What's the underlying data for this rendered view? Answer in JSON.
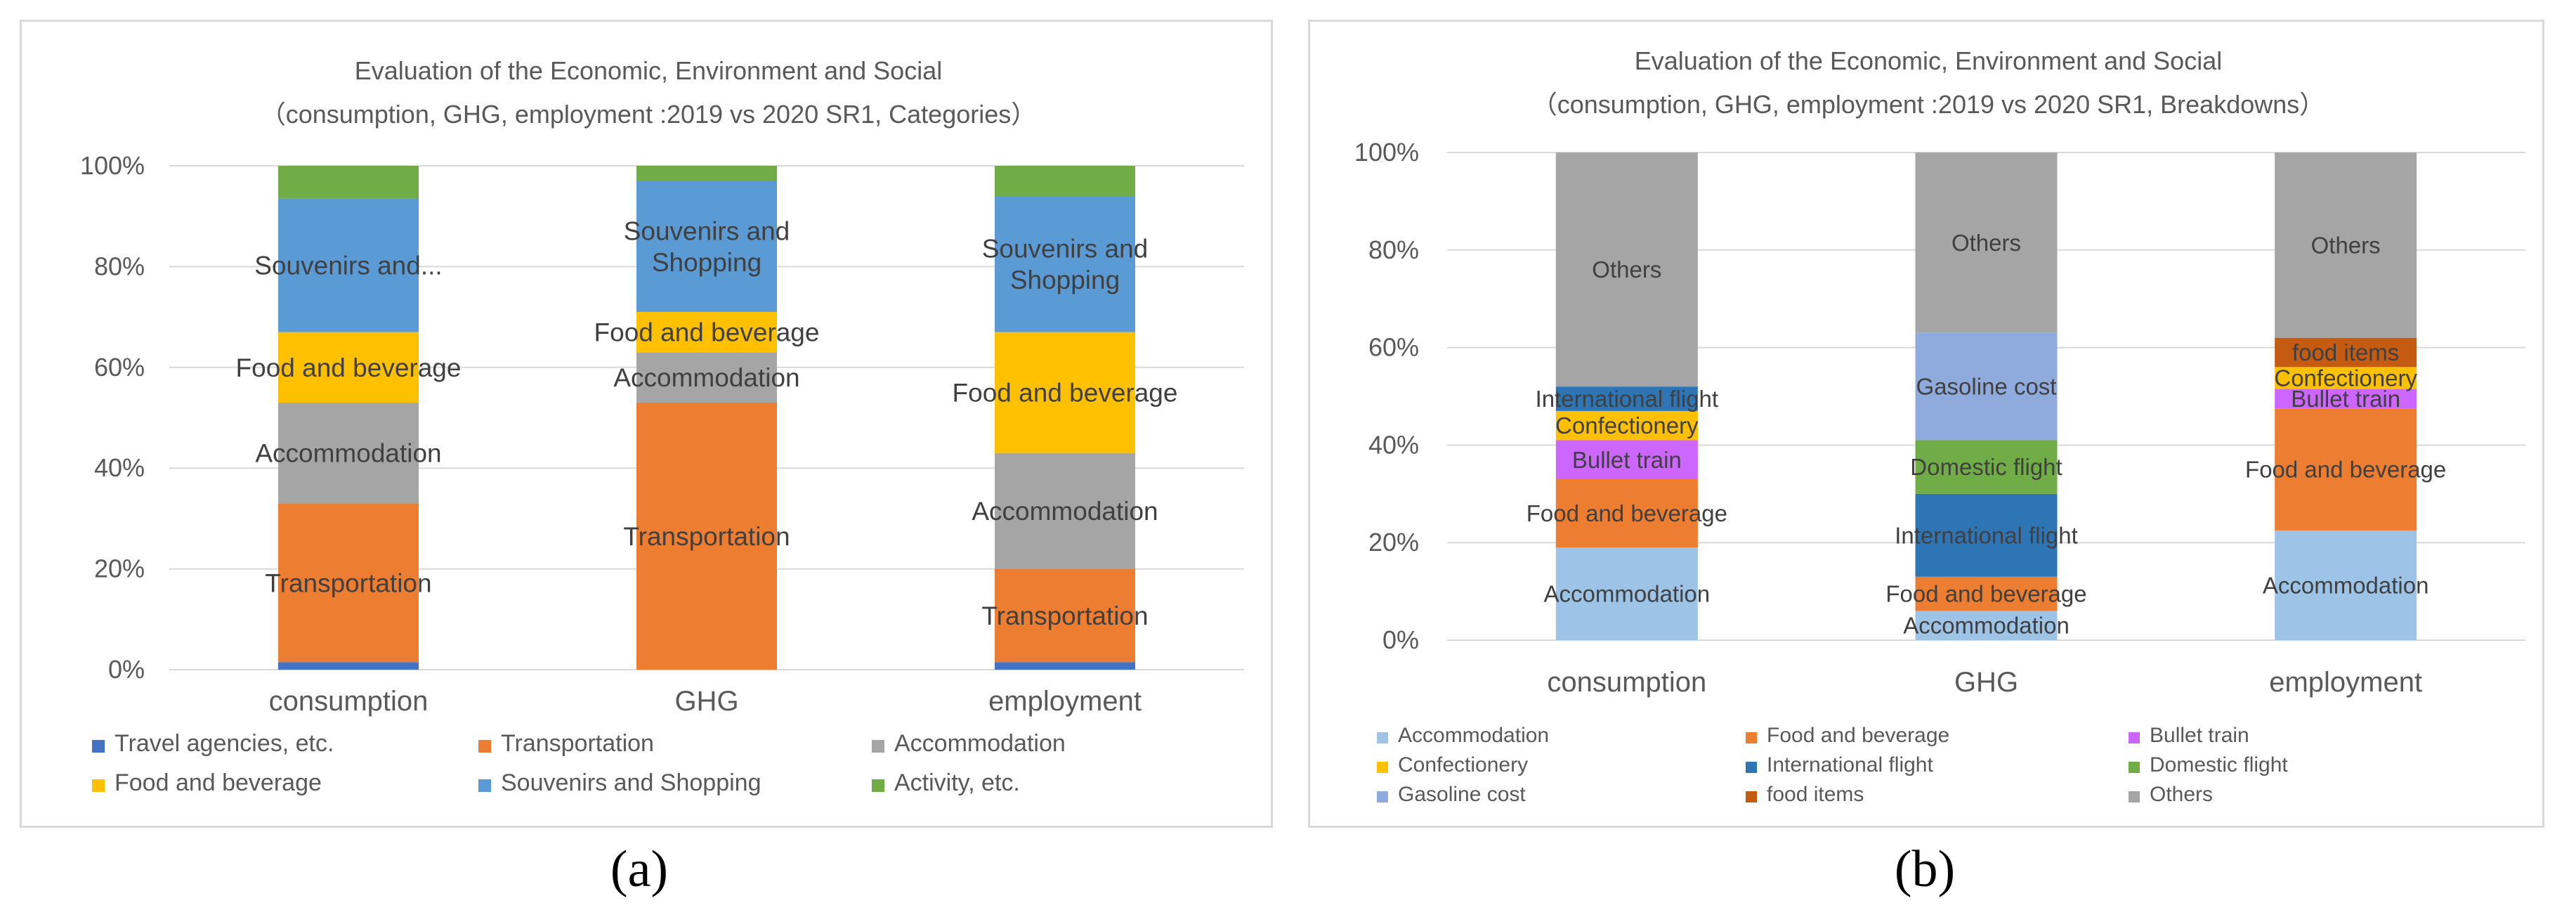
{
  "figure_labels": {
    "a": "(a)",
    "b": "(b)"
  },
  "chart_data": [
    {
      "id": "a",
      "type": "bar",
      "stacked": "percent",
      "title": "Evaluation of the Economic, Environment and Social",
      "subtitle": "（consumption, GHG, employment :2019 vs 2020 SR1, Categories）",
      "categories": [
        "consumption",
        "GHG",
        "employment"
      ],
      "ylim": [
        0,
        100
      ],
      "yticks": [
        "0%",
        "20%",
        "40%",
        "60%",
        "80%",
        "100%"
      ],
      "grid": true,
      "legend_position": "bottom",
      "series": [
        {
          "name": "Travel agencies, etc.",
          "color": "#4472c4",
          "values": [
            1.5,
            0,
            1.5
          ],
          "labels": [
            "",
            "",
            ""
          ]
        },
        {
          "name": "Transportation",
          "color": "#ed7d31",
          "values": [
            31.5,
            53,
            18.5
          ],
          "labels": [
            "Transportation",
            "Transportation",
            "Transportation"
          ]
        },
        {
          "name": "Accommodation",
          "color": "#a5a5a5",
          "values": [
            20,
            10,
            23
          ],
          "labels": [
            "Accommodation",
            "Accommodation",
            "Accommodation"
          ]
        },
        {
          "name": "Food and beverage",
          "color": "#ffc000",
          "values": [
            14,
            8,
            24
          ],
          "labels": [
            "Food and beverage",
            "Food and beverage",
            "Food and beverage"
          ]
        },
        {
          "name": "Souvenirs and Shopping",
          "color": "#5b9bd5",
          "values": [
            26.5,
            26,
            27
          ],
          "labels": [
            "Souvenirs and...",
            "Souvenirs and\nShopping",
            "Souvenirs and\nShopping"
          ]
        },
        {
          "name": "Activity, etc.",
          "color": "#70ad47",
          "values": [
            6.5,
            3,
            6
          ],
          "labels": [
            "",
            "",
            ""
          ]
        }
      ]
    },
    {
      "id": "b",
      "type": "bar",
      "stacked": "percent",
      "title": "Evaluation of the Economic, Environment and Social",
      "subtitle": "（consumption, GHG, employment :2019 vs 2020 SR1, Breakdowns）",
      "categories": [
        "consumption",
        "GHG",
        "employment"
      ],
      "ylim": [
        0,
        100
      ],
      "yticks": [
        "0%",
        "20%",
        "40%",
        "60%",
        "80%",
        "100%"
      ],
      "grid": true,
      "legend_position": "bottom",
      "series": [
        {
          "name": "Accommodation",
          "color": "#9dc3e6",
          "values": [
            19,
            6,
            22.5
          ],
          "labels": [
            "Accommodation",
            "Accommodation",
            "Accommodation"
          ]
        },
        {
          "name": "Food and beverage",
          "color": "#ed7d31",
          "values": [
            14,
            7,
            25
          ],
          "labels": [
            "Food and beverage",
            "Food and beverage",
            "Food and beverage"
          ]
        },
        {
          "name": "Bullet train",
          "color": "#cc66ff",
          "values": [
            8,
            0,
            4
          ],
          "labels": [
            "Bullet train",
            "",
            "Bullet train"
          ]
        },
        {
          "name": "Confectionery",
          "color": "#ffc000",
          "values": [
            6,
            0,
            4.5
          ],
          "labels": [
            "Confectionery",
            "",
            "Confectionery"
          ]
        },
        {
          "name": "International flight",
          "color": "#2e75b6",
          "values": [
            5,
            17,
            0
          ],
          "labels": [
            "International flight",
            "International flight",
            ""
          ]
        },
        {
          "name": "Domestic flight",
          "color": "#70ad47",
          "values": [
            0,
            11,
            0
          ],
          "labels": [
            "",
            "Domestic flight",
            ""
          ]
        },
        {
          "name": "Gasoline cost",
          "color": "#8faadc",
          "values": [
            0,
            22,
            0
          ],
          "labels": [
            "",
            "Gasoline cost",
            ""
          ]
        },
        {
          "name": "food items",
          "color": "#c55a11",
          "values": [
            0,
            0,
            6
          ],
          "labels": [
            "",
            "",
            "food items"
          ]
        },
        {
          "name": "Others",
          "color": "#a5a5a5",
          "values": [
            48,
            37,
            38
          ],
          "labels": [
            "Others",
            "Others",
            "Others"
          ]
        }
      ]
    }
  ]
}
